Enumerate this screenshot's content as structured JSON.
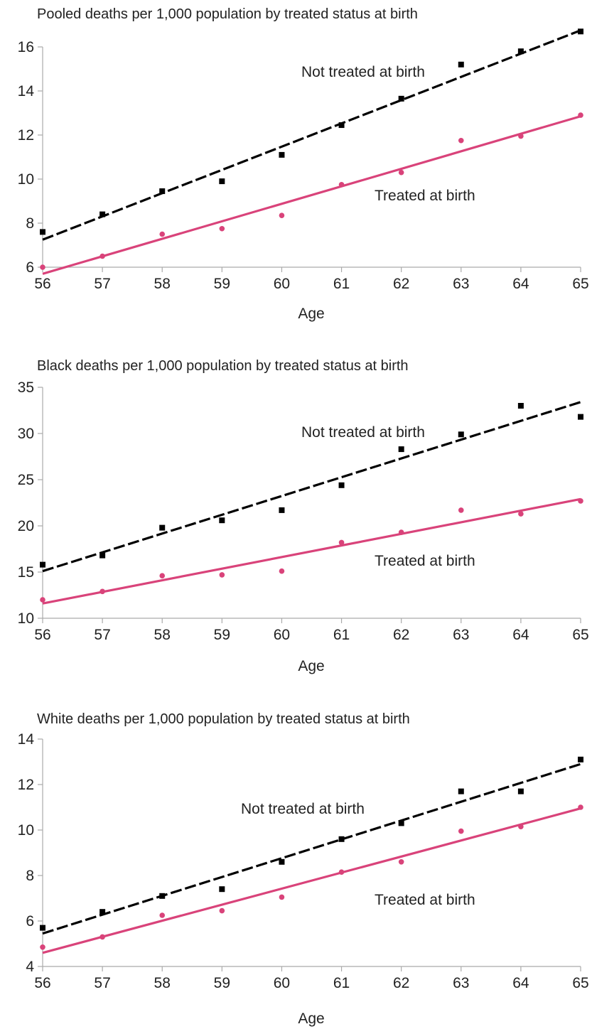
{
  "colors": {
    "not_treated": "#000000",
    "treated": "#d9437a"
  },
  "chart_data": [
    {
      "type": "scatter",
      "title": "Pooled deaths per 1,000 population by treated status at birth",
      "xlabel": "Age",
      "x": [
        56,
        57,
        58,
        59,
        60,
        61,
        62,
        63,
        64,
        65
      ],
      "xlim": [
        56,
        65
      ],
      "ylim": [
        6,
        16
      ],
      "yticks": [
        6,
        8,
        10,
        12,
        14,
        16
      ],
      "series": [
        {
          "name": "Not treated at birth",
          "marker": "square",
          "color": "#000000",
          "values": [
            7.6,
            8.4,
            9.45,
            9.9,
            11.1,
            12.45,
            13.65,
            15.2,
            15.8,
            16.7
          ],
          "fit": [
            7.25,
            16.75
          ]
        },
        {
          "name": "Treated at birth",
          "marker": "circle",
          "color": "#d9437a",
          "values": [
            6.0,
            6.5,
            7.5,
            7.75,
            8.35,
            9.75,
            10.3,
            11.75,
            11.95,
            12.9
          ],
          "fit": [
            5.7,
            12.85
          ]
        }
      ],
      "annotations": [
        "Not treated at birth",
        "Treated at birth"
      ]
    },
    {
      "type": "scatter",
      "title": "Black deaths per 1,000 population by treated status at birth",
      "xlabel": "Age",
      "x": [
        56,
        57,
        58,
        59,
        60,
        61,
        62,
        63,
        64,
        65
      ],
      "xlim": [
        56,
        65
      ],
      "ylim": [
        10,
        35
      ],
      "yticks": [
        10,
        15,
        20,
        25,
        30,
        35
      ],
      "series": [
        {
          "name": "Not treated at birth",
          "marker": "square",
          "color": "#000000",
          "values": [
            15.8,
            16.8,
            19.8,
            20.6,
            21.7,
            24.4,
            28.3,
            29.9,
            33.0,
            31.8
          ],
          "fit": [
            15.1,
            33.4
          ]
        },
        {
          "name": "Treated at birth",
          "marker": "circle",
          "color": "#d9437a",
          "values": [
            12.0,
            12.9,
            14.6,
            14.7,
            15.1,
            18.2,
            19.3,
            21.7,
            21.3,
            22.7
          ],
          "fit": [
            11.6,
            22.9
          ]
        }
      ],
      "annotations": [
        "Not treated at birth",
        "Treated at birth"
      ]
    },
    {
      "type": "scatter",
      "title": "White deaths per 1,000 population by treated status at birth",
      "xlabel": "Age",
      "x": [
        56,
        57,
        58,
        59,
        60,
        61,
        62,
        63,
        64,
        65
      ],
      "xlim": [
        56,
        65
      ],
      "ylim": [
        4,
        14
      ],
      "yticks": [
        4,
        6,
        8,
        10,
        12,
        14
      ],
      "series": [
        {
          "name": "Not treated at birth",
          "marker": "square",
          "color": "#000000",
          "values": [
            5.7,
            6.4,
            7.1,
            7.4,
            8.6,
            9.6,
            10.3,
            11.7,
            11.7,
            13.1
          ],
          "fit": [
            5.45,
            12.9
          ]
        },
        {
          "name": "Treated at birth",
          "marker": "circle",
          "color": "#d9437a",
          "values": [
            4.85,
            5.3,
            6.25,
            6.45,
            7.05,
            8.15,
            8.6,
            9.95,
            10.15,
            11.0
          ],
          "fit": [
            4.6,
            10.95
          ]
        }
      ],
      "annotations": [
        "Not treated at birth",
        "Treated at birth"
      ]
    }
  ]
}
